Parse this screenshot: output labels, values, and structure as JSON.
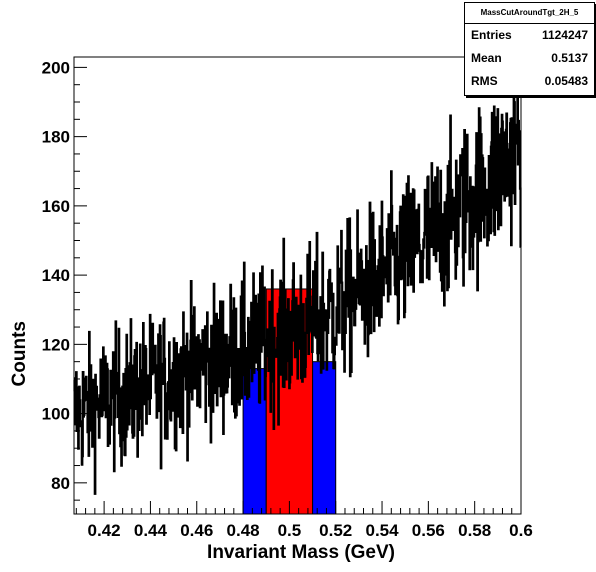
{
  "chart_data": {
    "type": "bar",
    "title": "",
    "xlabel": "Invariant Mass (GeV)",
    "ylabel": "Counts",
    "xlim": [
      0.407,
      0.6
    ],
    "ylim": [
      71,
      203
    ],
    "xticks": [
      0.42,
      0.44,
      0.46,
      0.48,
      0.5,
      0.52,
      0.54,
      0.56,
      0.58,
      0.6
    ],
    "xtick_labels": [
      "0.42",
      "0.44",
      "0.46",
      "0.48",
      "0.5",
      "0.52",
      "0.54",
      "0.56",
      "0.58",
      "0.6"
    ],
    "yticks": [
      80,
      100,
      120,
      140,
      160,
      180,
      200
    ],
    "ytick_labels": [
      "80",
      "100",
      "120",
      "140",
      "160",
      "180",
      "200"
    ],
    "grid": false,
    "series": [
      {
        "fill": "#0000ff",
        "bars": [
          {
            "x0": 0.48,
            "x1": 0.49,
            "value": 113
          },
          {
            "x0": 0.51,
            "x1": 0.52,
            "value": 115
          }
        ]
      },
      {
        "fill": "#ff0000",
        "bars": [
          {
            "x0": 0.49,
            "x1": 0.51,
            "value": 136
          }
        ]
      }
    ],
    "histogram_trend": [
      {
        "x": 0.407,
        "y": 100
      },
      {
        "x": 0.44,
        "y": 108
      },
      {
        "x": 0.46,
        "y": 114
      },
      {
        "x": 0.48,
        "y": 118
      },
      {
        "x": 0.5,
        "y": 124
      },
      {
        "x": 0.52,
        "y": 130
      },
      {
        "x": 0.54,
        "y": 140
      },
      {
        "x": 0.56,
        "y": 150
      },
      {
        "x": 0.58,
        "y": 163
      },
      {
        "x": 0.6,
        "y": 178
      }
    ],
    "histogram_bins": 860,
    "histogram_line_color": "#000000"
  },
  "stats": {
    "title": "MassCutAroundTgt_2H_5",
    "rows": [
      {
        "label": "Entries",
        "value": "1124247"
      },
      {
        "label": "Mean",
        "value": "0.5137"
      },
      {
        "label": "RMS",
        "value": "0.05483"
      }
    ]
  }
}
